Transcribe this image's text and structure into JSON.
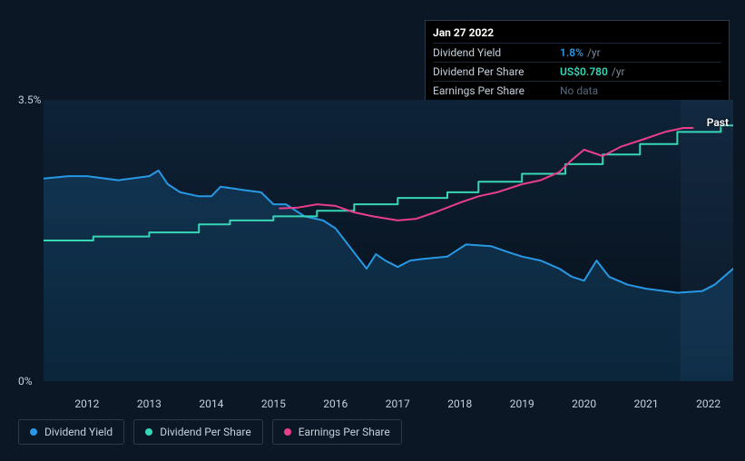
{
  "background_color": "#0b1724",
  "tooltip": {
    "date": "Jan 27 2022",
    "rows": [
      {
        "label": "Dividend Yield",
        "value": "1.8%",
        "unit": "/yr",
        "color": "#2798e4"
      },
      {
        "label": "Dividend Per Share",
        "value": "US$0.780",
        "unit": "/yr",
        "color": "#36d6b7"
      },
      {
        "label": "Earnings Per Share",
        "value": "No data",
        "nodata": true
      }
    ]
  },
  "chart": {
    "type": "line",
    "x_years": [
      2012,
      2013,
      2014,
      2015,
      2016,
      2017,
      2018,
      2019,
      2020,
      2021,
      2022
    ],
    "x_min": 2011.3,
    "x_max": 2022.4,
    "y_min": 0,
    "y_max": 3.5,
    "y_ticks": [
      {
        "v": 0,
        "label": "0%"
      },
      {
        "v": 3.5,
        "label": "3.5%"
      }
    ],
    "plot_bg_gradient_top": "#0e2338",
    "plot_bg_gradient_bottom": "#060d16",
    "past_label": "Past",
    "past_shade_from": 2021.55,
    "past_shade_color": "rgba(30,60,90,0.25)",
    "axis_color": "#c4d0dc",
    "series": [
      {
        "name": "Dividend Yield",
        "color": "#2798e4",
        "stroke_width": 2,
        "area_fill": "rgba(39,152,228,0.18)",
        "points": [
          [
            2011.3,
            2.52
          ],
          [
            2011.7,
            2.55
          ],
          [
            2012.0,
            2.55
          ],
          [
            2012.5,
            2.5
          ],
          [
            2013.0,
            2.55
          ],
          [
            2013.15,
            2.62
          ],
          [
            2013.3,
            2.45
          ],
          [
            2013.5,
            2.35
          ],
          [
            2013.8,
            2.3
          ],
          [
            2014.0,
            2.3
          ],
          [
            2014.15,
            2.42
          ],
          [
            2014.5,
            2.38
          ],
          [
            2014.8,
            2.35
          ],
          [
            2015.0,
            2.2
          ],
          [
            2015.2,
            2.2
          ],
          [
            2015.5,
            2.05
          ],
          [
            2015.8,
            2.0
          ],
          [
            2016.0,
            1.9
          ],
          [
            2016.3,
            1.6
          ],
          [
            2016.5,
            1.4
          ],
          [
            2016.65,
            1.58
          ],
          [
            2016.8,
            1.5
          ],
          [
            2017.0,
            1.42
          ],
          [
            2017.2,
            1.5
          ],
          [
            2017.4,
            1.52
          ],
          [
            2017.8,
            1.55
          ],
          [
            2018.1,
            1.7
          ],
          [
            2018.5,
            1.68
          ],
          [
            2018.8,
            1.6
          ],
          [
            2019.0,
            1.55
          ],
          [
            2019.3,
            1.5
          ],
          [
            2019.6,
            1.4
          ],
          [
            2019.8,
            1.3
          ],
          [
            2020.0,
            1.25
          ],
          [
            2020.2,
            1.5
          ],
          [
            2020.4,
            1.3
          ],
          [
            2020.7,
            1.2
          ],
          [
            2021.0,
            1.15
          ],
          [
            2021.5,
            1.1
          ],
          [
            2021.9,
            1.12
          ],
          [
            2022.1,
            1.2
          ],
          [
            2022.4,
            1.4
          ]
        ]
      },
      {
        "name": "Dividend Per Share",
        "color": "#36d6b7",
        "stroke_width": 2,
        "points": [
          [
            2011.3,
            1.75
          ],
          [
            2012.1,
            1.75
          ],
          [
            2012.1,
            1.8
          ],
          [
            2013.0,
            1.8
          ],
          [
            2013.0,
            1.85
          ],
          [
            2013.8,
            1.85
          ],
          [
            2013.8,
            1.95
          ],
          [
            2014.3,
            1.95
          ],
          [
            2014.3,
            2.0
          ],
          [
            2015.0,
            2.0
          ],
          [
            2015.0,
            2.05
          ],
          [
            2015.7,
            2.05
          ],
          [
            2015.7,
            2.12
          ],
          [
            2016.3,
            2.12
          ],
          [
            2016.3,
            2.2
          ],
          [
            2017.0,
            2.2
          ],
          [
            2017.0,
            2.28
          ],
          [
            2017.8,
            2.28
          ],
          [
            2017.8,
            2.35
          ],
          [
            2018.3,
            2.35
          ],
          [
            2018.3,
            2.48
          ],
          [
            2019.0,
            2.48
          ],
          [
            2019.0,
            2.58
          ],
          [
            2019.7,
            2.58
          ],
          [
            2019.7,
            2.7
          ],
          [
            2020.3,
            2.7
          ],
          [
            2020.3,
            2.82
          ],
          [
            2020.9,
            2.82
          ],
          [
            2020.9,
            2.95
          ],
          [
            2021.5,
            2.95
          ],
          [
            2021.5,
            3.1
          ],
          [
            2022.2,
            3.1
          ],
          [
            2022.2,
            3.18
          ],
          [
            2022.4,
            3.18
          ]
        ]
      },
      {
        "name": "Earnings Per Share",
        "color": "#e83e8c",
        "stroke_width": 2,
        "points": [
          [
            2015.1,
            2.15
          ],
          [
            2015.4,
            2.16
          ],
          [
            2015.7,
            2.2
          ],
          [
            2016.0,
            2.18
          ],
          [
            2016.3,
            2.1
          ],
          [
            2016.6,
            2.05
          ],
          [
            2017.0,
            2.0
          ],
          [
            2017.3,
            2.02
          ],
          [
            2017.6,
            2.1
          ],
          [
            2018.0,
            2.22
          ],
          [
            2018.3,
            2.3
          ],
          [
            2018.6,
            2.35
          ],
          [
            2019.0,
            2.45
          ],
          [
            2019.3,
            2.5
          ],
          [
            2019.6,
            2.6
          ],
          [
            2019.8,
            2.75
          ],
          [
            2020.0,
            2.88
          ],
          [
            2020.3,
            2.8
          ],
          [
            2020.6,
            2.92
          ],
          [
            2021.0,
            3.02
          ],
          [
            2021.3,
            3.1
          ],
          [
            2021.6,
            3.15
          ],
          [
            2021.75,
            3.15
          ]
        ]
      }
    ]
  },
  "legend": {
    "items": [
      {
        "label": "Dividend Yield",
        "color": "#2798e4"
      },
      {
        "label": "Dividend Per Share",
        "color": "#36d6b7"
      },
      {
        "label": "Earnings Per Share",
        "color": "#e83e8c"
      }
    ]
  }
}
